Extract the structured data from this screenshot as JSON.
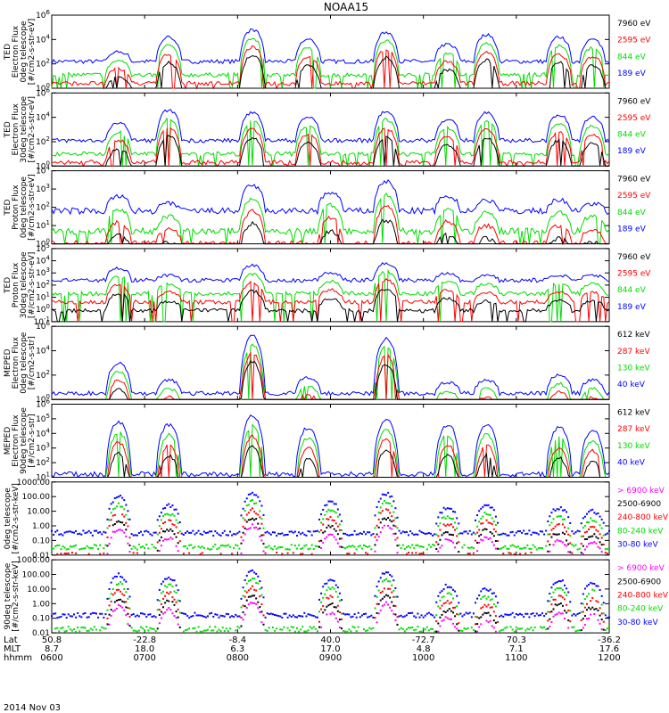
{
  "title": "NOAA15",
  "date_label": "2014 Nov 03",
  "colors": {
    "black": "#000000",
    "red": "#ff0000",
    "green": "#00dd00",
    "blue": "#0000ff",
    "magenta": "#ff00ff"
  },
  "footer": {
    "rows": [
      {
        "label": "Lat",
        "values": [
          "50.8",
          "-22.8",
          "-8.4",
          "40.0",
          "-72.7",
          "70.3",
          "-36.2"
        ]
      },
      {
        "label": "MLT",
        "values": [
          "8.7",
          "18.0",
          "6.3",
          "17.0",
          "4.8",
          "7.1",
          "17.6"
        ]
      },
      {
        "label": "hhmm",
        "values": [
          "0600",
          "0700",
          "0800",
          "0900",
          "1000",
          "1100",
          "1200"
        ]
      }
    ]
  },
  "chart_data": [
    {
      "type": "line",
      "panel": 1,
      "ylabel": [
        "TED",
        "Electron Flux",
        "0deg telescope",
        "[#/cm2-s-str-eV]"
      ],
      "yscale": "log",
      "ylim": [
        1,
        1000000
      ],
      "ytick_labels": [
        "10^0",
        "10^2",
        "10^4",
        "10^6"
      ],
      "x_time_range": [
        "0600",
        "1200"
      ],
      "legend": [
        {
          "name": "7960 eV",
          "color": "black"
        },
        {
          "name": "2595 eV",
          "color": "red"
        },
        {
          "name": "844 eV",
          "color": "green"
        },
        {
          "name": "189 eV",
          "color": "blue"
        }
      ],
      "background_log10": 2.2,
      "events": [
        [
          0.12,
          3.0
        ],
        [
          0.21,
          4.2
        ],
        [
          0.36,
          4.8
        ],
        [
          0.46,
          4.0
        ],
        [
          0.6,
          4.6
        ],
        [
          0.71,
          3.6
        ],
        [
          0.78,
          4.4
        ],
        [
          0.91,
          4.2
        ],
        [
          0.97,
          4.0
        ]
      ]
    },
    {
      "type": "line",
      "panel": 2,
      "ylabel": [
        "TED",
        "Electron Flux",
        "30deg telescope",
        "[#/cm2-s-str-eV]"
      ],
      "yscale": "log",
      "ylim": [
        1,
        1000000
      ],
      "ytick_labels": [
        "10^0",
        "10^2",
        "10^4",
        "10^6"
      ],
      "x_time_range": [
        "0600",
        "1200"
      ],
      "legend": [
        {
          "name": "7960 eV",
          "color": "black"
        },
        {
          "name": "2595 eV",
          "color": "red"
        },
        {
          "name": "844 eV",
          "color": "green"
        },
        {
          "name": "189 eV",
          "color": "blue"
        }
      ],
      "background_log10": 2.1,
      "events": [
        [
          0.12,
          3.5
        ],
        [
          0.21,
          4.6
        ],
        [
          0.36,
          4.4
        ],
        [
          0.46,
          4.0
        ],
        [
          0.6,
          4.5
        ],
        [
          0.71,
          3.8
        ],
        [
          0.78,
          4.4
        ],
        [
          0.91,
          4.2
        ],
        [
          0.97,
          4.0
        ]
      ]
    },
    {
      "type": "line",
      "panel": 3,
      "ylabel": [
        "TED",
        "Proton Flux",
        "0deg telescope",
        "[#/cm2-s-str-eV]"
      ],
      "yscale": "log",
      "ylim": [
        1,
        10000
      ],
      "ytick_labels": [
        "10^0",
        "10^1",
        "10^2",
        "10^3",
        "10^4"
      ],
      "x_time_range": [
        "0600",
        "1200"
      ],
      "legend": [
        {
          "name": "7960 eV",
          "color": "black"
        },
        {
          "name": "2595 eV",
          "color": "red"
        },
        {
          "name": "844 eV",
          "color": "green"
        },
        {
          "name": "189 eV",
          "color": "blue"
        }
      ],
      "background_log10": 1.8,
      "events": [
        [
          0.12,
          2.6
        ],
        [
          0.21,
          2.2
        ],
        [
          0.36,
          3.2
        ],
        [
          0.5,
          2.8
        ],
        [
          0.6,
          3.4
        ],
        [
          0.71,
          2.6
        ],
        [
          0.78,
          2.4
        ],
        [
          0.91,
          2.4
        ],
        [
          0.97,
          2.2
        ]
      ]
    },
    {
      "type": "line",
      "panel": 4,
      "ylabel": [
        "TED",
        "Proton Flux",
        "30deg telescope",
        "[#/cm2-s-str-eV]"
      ],
      "yscale": "log",
      "ylim": [
        0.1,
        100000
      ],
      "ytick_labels": [
        "10^-1",
        "10^0",
        "10^1",
        "10^2",
        "10^3",
        "10^4",
        "10^5"
      ],
      "x_time_range": [
        "0600",
        "1200"
      ],
      "legend": [
        {
          "name": "7960 eV",
          "color": "black"
        },
        {
          "name": "2595 eV",
          "color": "red"
        },
        {
          "name": "844 eV",
          "color": "green"
        },
        {
          "name": "189 eV",
          "color": "blue"
        }
      ],
      "background_log10": 2.4,
      "events": [
        [
          0.12,
          3.4
        ],
        [
          0.21,
          2.8
        ],
        [
          0.36,
          3.6
        ],
        [
          0.5,
          3.0
        ],
        [
          0.6,
          3.8
        ],
        [
          0.71,
          3.0
        ],
        [
          0.78,
          2.8
        ],
        [
          0.91,
          2.8
        ],
        [
          0.97,
          2.8
        ]
      ]
    },
    {
      "type": "line",
      "panel": 5,
      "ylabel": [
        "MEPED",
        "Electron Flux",
        "0deg telescope",
        "[#/cm2-s-str]"
      ],
      "yscale": "log",
      "ylim": [
        1,
        1000000
      ],
      "ytick_labels": [
        "10^0",
        "10^2",
        "10^4",
        "10^6"
      ],
      "x_time_range": [
        "0600",
        "1200"
      ],
      "legend": [
        {
          "name": "612 keV",
          "color": "black"
        },
        {
          "name": "287 keV",
          "color": "red"
        },
        {
          "name": "130 keV",
          "color": "green"
        },
        {
          "name": "40 keV",
          "color": "blue"
        }
      ],
      "background_log10": 0.5,
      "events": [
        [
          0.12,
          3.0
        ],
        [
          0.21,
          1.6
        ],
        [
          0.36,
          5.2
        ],
        [
          0.46,
          1.8
        ],
        [
          0.6,
          5.0
        ],
        [
          0.71,
          1.4
        ],
        [
          0.78,
          1.6
        ],
        [
          0.91,
          2.0
        ],
        [
          0.97,
          1.6
        ]
      ]
    },
    {
      "type": "line",
      "panel": 6,
      "ylabel": [
        "MEPED",
        "Electron Flux",
        "90deg telescope",
        "[#/cm2-s-str]"
      ],
      "yscale": "log",
      "ylim": [
        10,
        1000000
      ],
      "ytick_labels": [
        "10^1",
        "10^2",
        "10^3",
        "10^4",
        "10^5",
        "10^6"
      ],
      "x_time_range": [
        "0600",
        "1200"
      ],
      "legend": [
        {
          "name": "612 keV",
          "color": "black"
        },
        {
          "name": "287 keV",
          "color": "red"
        },
        {
          "name": "130 keV",
          "color": "green"
        },
        {
          "name": "40 keV",
          "color": "blue"
        }
      ],
      "background_log10": 1.2,
      "events": [
        [
          0.12,
          4.8
        ],
        [
          0.21,
          4.6
        ],
        [
          0.36,
          5.2
        ],
        [
          0.46,
          4.4
        ],
        [
          0.6,
          5.0
        ],
        [
          0.71,
          4.6
        ],
        [
          0.78,
          4.6
        ],
        [
          0.91,
          4.4
        ],
        [
          0.97,
          4.2
        ]
      ]
    },
    {
      "type": "scatter",
      "panel": 7,
      "ylabel": [
        "0deg telescope",
        "[#/cm2-s-str-keV]"
      ],
      "yscale": "log",
      "ylim": [
        0.01,
        1000
      ],
      "ytick_labels": [
        "0.01",
        "0.10",
        "1.00",
        "10.00",
        "100.00",
        "1000.00"
      ],
      "x_time_range": [
        "0600",
        "1200"
      ],
      "legend": [
        {
          "name": "> 6900 keV",
          "color": "magenta"
        },
        {
          "name": "2500-6900",
          "color": "black"
        },
        {
          "name": "240-800 keV",
          "color": "red"
        },
        {
          "name": "80-240 keV",
          "color": "green"
        },
        {
          "name": "30-80 keV",
          "color": "blue"
        }
      ],
      "background_log10": -0.5,
      "events": [
        [
          0.12,
          2.0
        ],
        [
          0.21,
          1.4
        ],
        [
          0.36,
          2.2
        ],
        [
          0.5,
          1.6
        ],
        [
          0.6,
          2.2
        ],
        [
          0.71,
          1.2
        ],
        [
          0.78,
          1.4
        ],
        [
          0.91,
          1.2
        ],
        [
          0.97,
          1.0
        ]
      ]
    },
    {
      "type": "scatter",
      "panel": 8,
      "ylabel": [
        "90deg telescope",
        "[#/cm2-s-str-keV]"
      ],
      "yscale": "log",
      "ylim": [
        0.01,
        1000
      ],
      "ytick_labels": [
        "0.01",
        "0.10",
        "1.00",
        "10.00",
        "100.00",
        "1000.00"
      ],
      "x_time_range": [
        "0600",
        "1200"
      ],
      "legend": [
        {
          "name": "> 6900 keV",
          "color": "magenta"
        },
        {
          "name": "2500-6900",
          "color": "black"
        },
        {
          "name": "240-800 keV",
          "color": "red"
        },
        {
          "name": "80-240 keV",
          "color": "green"
        },
        {
          "name": "30-80 keV",
          "color": "blue"
        }
      ],
      "background_log10": -0.8,
      "events": [
        [
          0.12,
          2.0
        ],
        [
          0.21,
          1.8
        ],
        [
          0.36,
          2.2
        ],
        [
          0.5,
          1.6
        ],
        [
          0.6,
          2.2
        ],
        [
          0.71,
          1.2
        ],
        [
          0.78,
          1.0
        ],
        [
          0.91,
          1.6
        ],
        [
          0.97,
          1.4
        ]
      ]
    }
  ]
}
